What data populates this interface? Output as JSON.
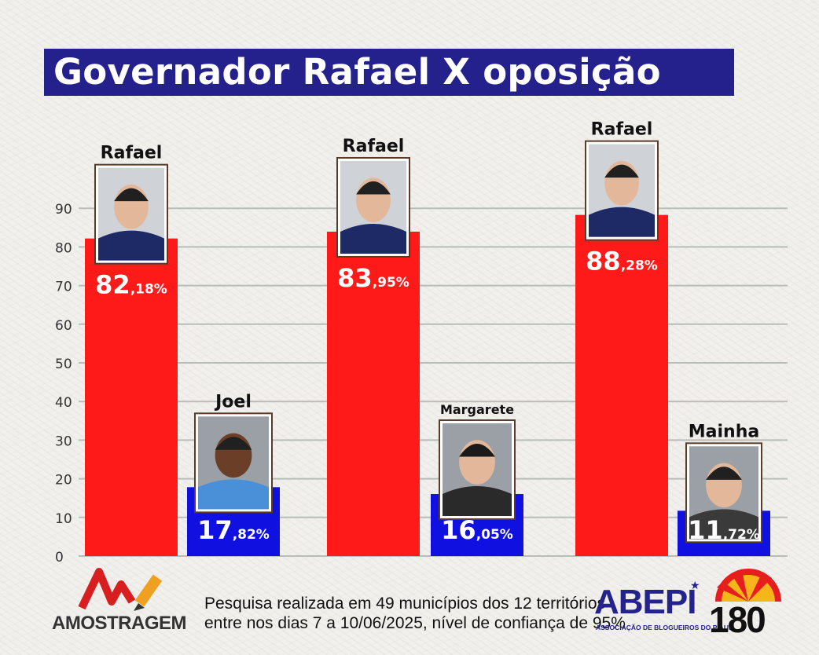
{
  "title": "Governador Rafael X oposição",
  "chart_data": {
    "type": "bar",
    "y_ticks": [
      0,
      10,
      20,
      30,
      40,
      50,
      60,
      70,
      80,
      90
    ],
    "ylim": [
      0,
      90
    ],
    "grid": true,
    "groups": [
      {
        "bars": [
          {
            "name": "Rafael",
            "value": 82.18,
            "label_int": "82",
            "label_dec": ",18%",
            "color": "#ff1a1a"
          },
          {
            "name": "Joel",
            "value": 17.82,
            "label_int": "17",
            "label_dec": ",82%",
            "color": "#1010e0"
          }
        ]
      },
      {
        "bars": [
          {
            "name": "Rafael",
            "value": 83.95,
            "label_int": "83",
            "label_dec": ",95%",
            "color": "#ff1a1a"
          },
          {
            "name": "Margarete",
            "value": 16.05,
            "label_int": "16",
            "label_dec": ",05%",
            "color": "#1010e0"
          }
        ]
      },
      {
        "bars": [
          {
            "name": "Rafael",
            "value": 88.28,
            "label_int": "88",
            "label_dec": ",28%",
            "color": "#ff1a1a"
          },
          {
            "name": "Mainha",
            "value": 11.72,
            "label_int": "11",
            "label_dec": ",72%",
            "color": "#1010e0"
          }
        ]
      }
    ]
  },
  "footer": {
    "line1": "Pesquisa realizada em 49 municípios dos 12 territórios",
    "line2": "entre nos dias 7 a 10/06/2025, nível de confiança de 95%"
  },
  "logos": {
    "amostragem": "AMOSTRAGEM",
    "abepi": "ABEPI",
    "abepi_sub": "ASSOCIAÇÃO DE BLOGUEIROS DO PIAUÍ",
    "brand_180": "180"
  }
}
